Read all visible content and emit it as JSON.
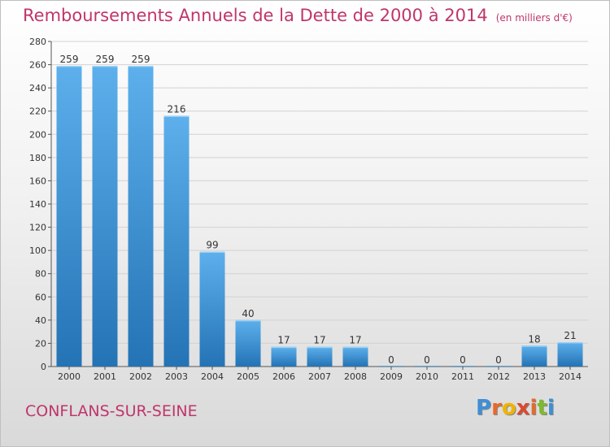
{
  "chart_data": {
    "type": "bar",
    "title": "Remboursements Annuels de la Dette de 2000 à 2014",
    "subtitle": "(en milliers d'€)",
    "categories": [
      "2000",
      "2001",
      "2002",
      "2003",
      "2004",
      "2005",
      "2006",
      "2007",
      "2008",
      "2009",
      "2010",
      "2011",
      "2012",
      "2013",
      "2014"
    ],
    "values": [
      259,
      259,
      259,
      216,
      99,
      40,
      17,
      17,
      17,
      0,
      0,
      0,
      0,
      18,
      21
    ],
    "xlabel": "",
    "ylabel": "",
    "ylim": [
      0,
      280
    ],
    "yticks": [
      0,
      20,
      40,
      60,
      80,
      100,
      120,
      140,
      160,
      180,
      200,
      220,
      240,
      260,
      280
    ],
    "grid": true,
    "legend": "none",
    "bar_color": "#2f86c9"
  },
  "footer": {
    "city": "CONFLANS-SUR-SEINE",
    "logo_letters": [
      "P",
      "r",
      "o",
      "x",
      "i",
      "t",
      "i"
    ],
    "logo_colors": [
      "#3d8fd6",
      "#e8692a",
      "#f0b400",
      "#d94a2d",
      "#e8692a",
      "#7fba2a",
      "#3d8fd6"
    ]
  }
}
